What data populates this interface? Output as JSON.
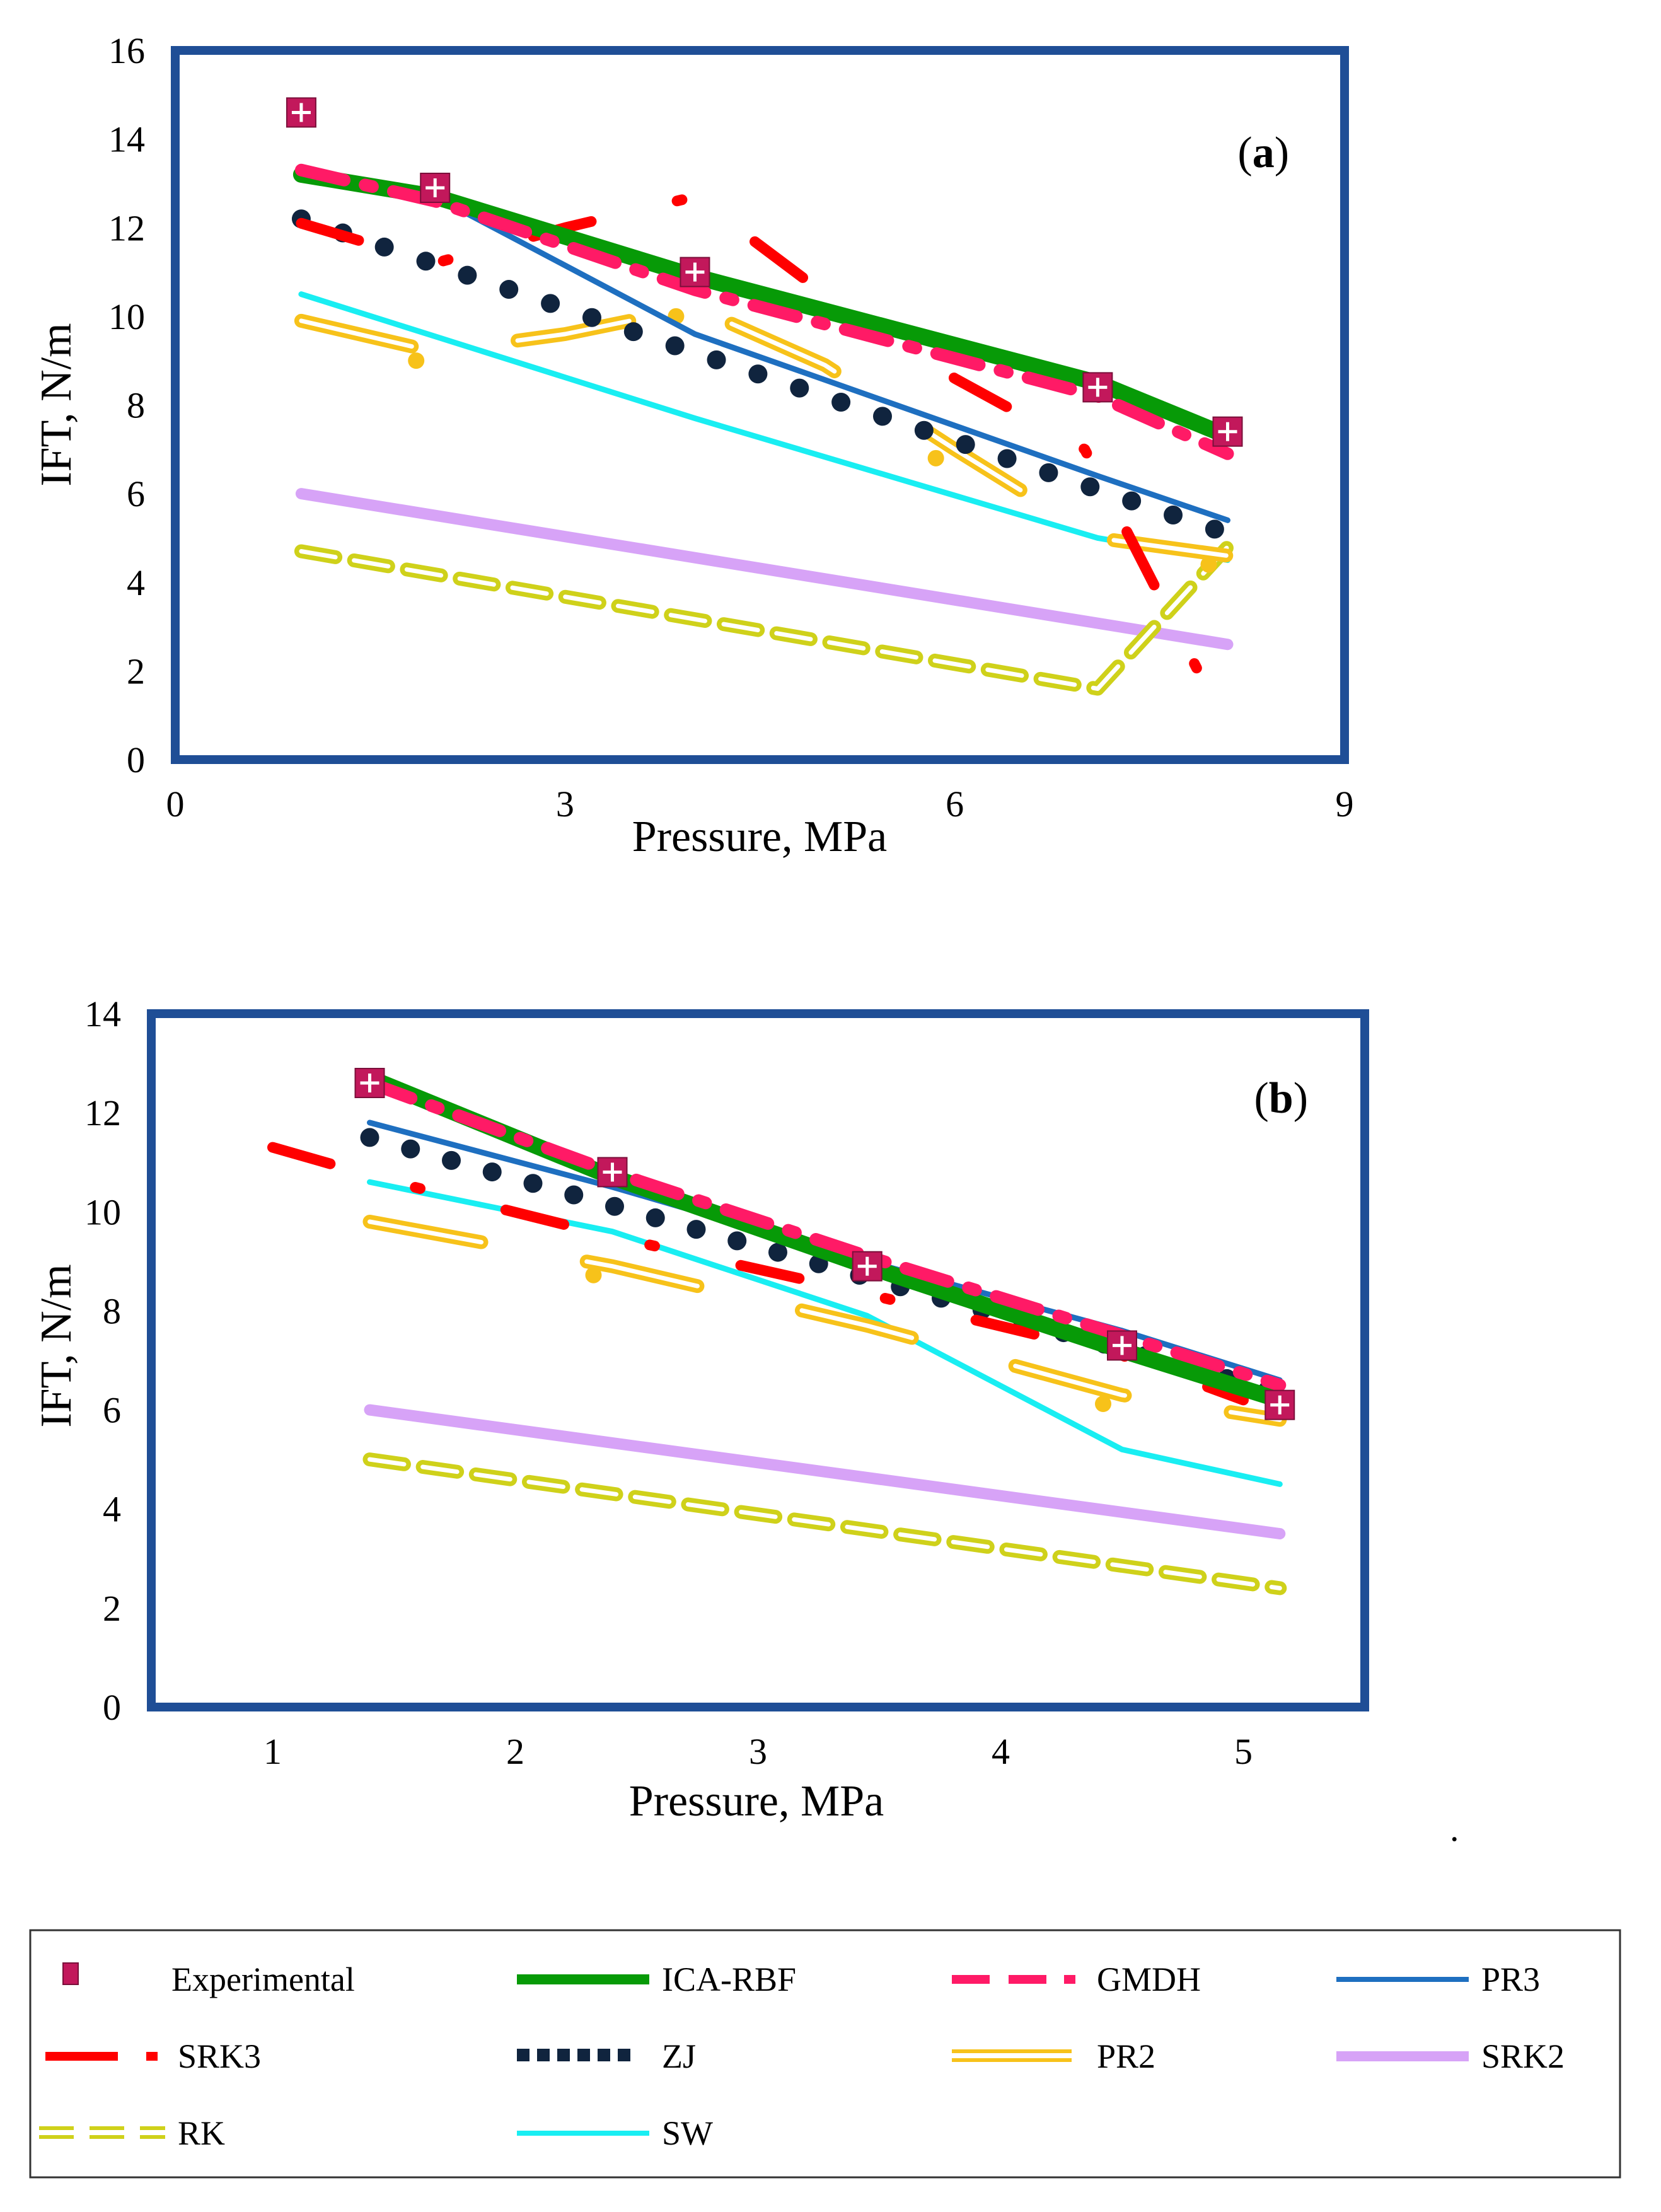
{
  "figure_note": ".",
  "legend": [
    {
      "key": "exp",
      "label": "Experimental"
    },
    {
      "key": "ica",
      "label": "ICA-RBF"
    },
    {
      "key": "gmdh",
      "label": "GMDH"
    },
    {
      "key": "pr3",
      "label": "PR3"
    },
    {
      "key": "srk3",
      "label": "SRK3"
    },
    {
      "key": "zj",
      "label": "ZJ"
    },
    {
      "key": "pr2",
      "label": "PR2"
    },
    {
      "key": "srk2",
      "label": "SRK2"
    },
    {
      "key": "rk",
      "label": "RK"
    },
    {
      "key": "sw",
      "label": "SW"
    }
  ],
  "colors": {
    "frame": "#1f4e96",
    "exp": "#c2185b",
    "ica": "#079a07",
    "gmdh": "#ff1a66",
    "pr3": "#1e6fc0",
    "srk3": "#ff0000",
    "zj": "#10243e",
    "pr2": "#f7c21a",
    "srk2": "#d7a3f7",
    "rk": "#cfd11a",
    "sw": "#19eef2"
  },
  "chart_data": [
    {
      "type": "line",
      "panel": "a",
      "tag_open": "(",
      "tag_letter": "a",
      "tag_close": ")",
      "xlabel": "Pressure, MPa",
      "ylabel": "IFT, N/m",
      "xlim": [
        0,
        9
      ],
      "ylim": [
        0,
        16
      ],
      "xticks": [
        0,
        3,
        6,
        9
      ],
      "yticks": [
        0,
        2,
        4,
        6,
        8,
        10,
        12,
        14,
        16
      ],
      "series": [
        {
          "key": "exp",
          "name": "Experimental",
          "x": [
            0.97,
            2.0,
            4.0,
            7.1,
            8.1
          ],
          "y": [
            14.6,
            12.9,
            11.0,
            8.4,
            7.4
          ]
        },
        {
          "key": "ica",
          "name": "ICA-RBF",
          "x": [
            0.97,
            2.0,
            4.0,
            7.1,
            8.1
          ],
          "y": [
            13.2,
            12.7,
            10.9,
            8.5,
            7.3
          ]
        },
        {
          "key": "gmdh",
          "name": "GMDH",
          "x": [
            0.97,
            2.0,
            4.0,
            7.1,
            8.1
          ],
          "y": [
            13.3,
            12.6,
            10.6,
            8.2,
            6.9
          ]
        },
        {
          "key": "pr3",
          "name": "PR3",
          "x": [
            0.97,
            2.0,
            4.0,
            7.1,
            8.1
          ],
          "y": [
            13.1,
            12.7,
            9.6,
            6.4,
            5.4
          ]
        },
        {
          "key": "srk3",
          "name": "SRK3",
          "x": [
            0.97,
            2.0,
            3.0,
            4.0,
            5.0,
            6.0,
            7.0,
            8.1
          ],
          "y": [
            12.1,
            11.2,
            12.0,
            12.7,
            10.5,
            8.6,
            7.0,
            0.7
          ]
        },
        {
          "key": "zj",
          "name": "ZJ",
          "x": [
            0.97,
            8.0
          ],
          "y": [
            12.2,
            5.2
          ],
          "dotted": true
        },
        {
          "key": "pr2",
          "name": "PR2",
          "x": [
            0.97,
            2.0,
            3.0,
            4.0,
            5.0,
            6.0,
            7.1,
            8.1
          ],
          "y": [
            9.9,
            9.2,
            9.6,
            10.2,
            8.9,
            7.0,
            5.0,
            4.6
          ]
        },
        {
          "key": "srk2",
          "name": "SRK2",
          "x": [
            0.97,
            8.1
          ],
          "y": [
            6.0,
            2.6
          ]
        },
        {
          "key": "rk",
          "name": "RK",
          "x": [
            0.97,
            7.1,
            8.1
          ],
          "y": [
            4.7,
            1.6,
            4.8
          ]
        },
        {
          "key": "sw",
          "name": "SW",
          "x": [
            0.97,
            4.0,
            7.1,
            8.1
          ],
          "y": [
            10.5,
            7.7,
            5.0,
            4.5
          ]
        }
      ]
    },
    {
      "type": "line",
      "panel": "b",
      "tag_open": "(",
      "tag_letter": "b",
      "tag_close": ")",
      "xlabel": "Pressure, MPa",
      "ylabel": "IFT, N/m",
      "xlim": [
        0.5,
        5.5
      ],
      "ylim": [
        0,
        14
      ],
      "xticks": [
        1,
        2,
        3,
        4,
        5
      ],
      "yticks": [
        0,
        2,
        4,
        6,
        8,
        10,
        12,
        14
      ],
      "series": [
        {
          "key": "exp",
          "name": "Experimental",
          "x": [
            1.4,
            2.4,
            3.45,
            4.5,
            5.15
          ],
          "y": [
            12.6,
            10.8,
            8.9,
            7.3,
            6.1
          ]
        },
        {
          "key": "ica",
          "name": "ICA-RBF",
          "x": [
            1.4,
            2.4,
            3.45,
            4.5,
            5.15
          ],
          "y": [
            12.7,
            10.7,
            8.9,
            7.2,
            6.2
          ]
        },
        {
          "key": "gmdh",
          "name": "GMDH",
          "x": [
            1.4,
            2.4,
            3.45,
            4.5,
            5.15
          ],
          "y": [
            12.6,
            10.8,
            9.1,
            7.5,
            6.5
          ]
        },
        {
          "key": "pr3",
          "name": "PR3",
          "x": [
            1.4,
            2.4,
            3.45,
            4.5,
            5.15
          ],
          "y": [
            11.8,
            10.5,
            9.0,
            7.6,
            6.6
          ]
        },
        {
          "key": "srk3",
          "name": "SRK3",
          "x": [
            1.0,
            1.5,
            2.4,
            3.4,
            4.5,
            5.0
          ],
          "y": [
            11.3,
            10.6,
            9.5,
            8.4,
            7.1,
            6.2
          ]
        },
        {
          "key": "zj",
          "name": "ZJ",
          "x": [
            1.4,
            5.1
          ],
          "y": [
            11.5,
            6.4
          ],
          "dotted": true
        },
        {
          "key": "pr2",
          "name": "PR2",
          "x": [
            1.4,
            2.4,
            3.45,
            4.5,
            5.15
          ],
          "y": [
            9.8,
            8.9,
            7.7,
            6.3,
            5.8
          ]
        },
        {
          "key": "srk2",
          "name": "SRK2",
          "x": [
            1.4,
            5.15
          ],
          "y": [
            6.0,
            3.5
          ]
        },
        {
          "key": "rk",
          "name": "RK",
          "x": [
            1.4,
            5.15
          ],
          "y": [
            5.0,
            2.4
          ]
        },
        {
          "key": "sw",
          "name": "SW",
          "x": [
            1.4,
            2.4,
            3.45,
            4.5,
            5.15
          ],
          "y": [
            10.6,
            9.6,
            7.9,
            5.2,
            4.5
          ]
        }
      ]
    }
  ]
}
